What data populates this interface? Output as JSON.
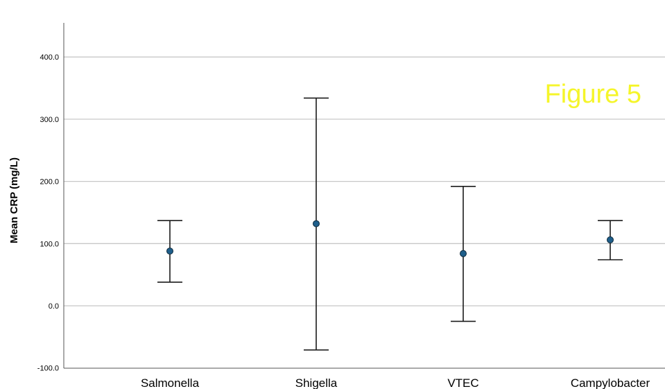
{
  "chart_data": {
    "type": "scatter",
    "subtype": "error-bar",
    "title": "",
    "xlabel": "",
    "ylabel": "Mean CRP (mg/L)",
    "ylim": [
      -100,
      450
    ],
    "yticks": [
      -100,
      0,
      100,
      200,
      300,
      400
    ],
    "ytick_labels": [
      "-100.0",
      "0.0",
      "100.0",
      "200.0",
      "300.0",
      "400.0"
    ],
    "grid": "horizontal",
    "categories": [
      "Salmonella",
      "Shigella",
      "VTEC",
      "Campylobacter"
    ],
    "series": [
      {
        "mean": [
          88,
          132,
          84,
          106
        ],
        "lower": [
          38,
          -71,
          -25,
          74
        ],
        "upper": [
          137,
          334,
          192,
          137
        ]
      }
    ],
    "annotation": {
      "text": "Figure 5",
      "position": "top-right"
    },
    "colors": {
      "point_fill": "#1f5f8b",
      "point_stroke": "#0d2a3d",
      "error_bar": "#1a1a1a",
      "grid": "#c8c8c8",
      "axis": "#555555",
      "annotation": "#f5f52a"
    }
  }
}
